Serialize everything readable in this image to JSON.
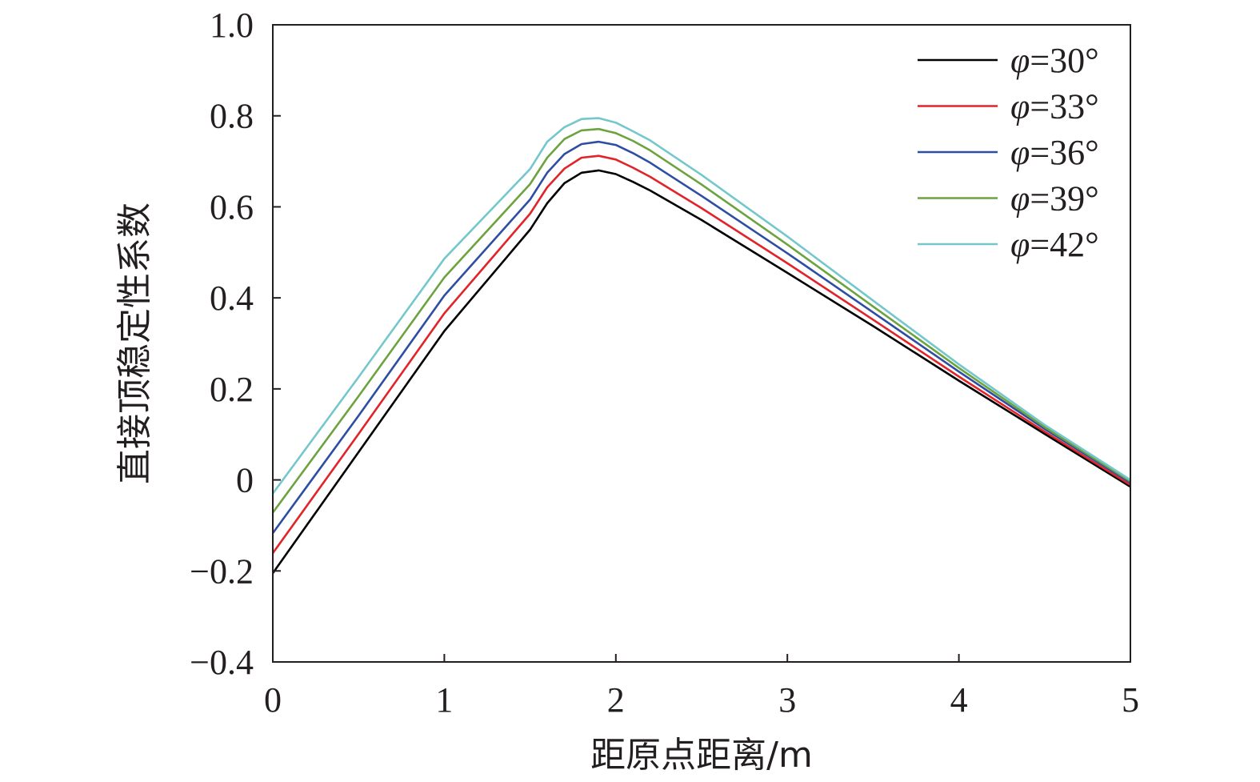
{
  "chart_data": {
    "type": "line",
    "xlabel": "距原点距离/m",
    "ylabel": "直接顶稳定性系数",
    "xlim": [
      0,
      5
    ],
    "ylim": [
      -0.4,
      1.0
    ],
    "x_ticks": [
      "0",
      "1",
      "2",
      "3",
      "4",
      "5"
    ],
    "y_ticks": [
      "−0.4",
      "−0.2",
      "0",
      "0.2",
      "0.4",
      "0.6",
      "0.8",
      "1.0"
    ],
    "grid": false,
    "legend_position": "top-right",
    "x": [
      0,
      0.5,
      1.0,
      1.5,
      1.6,
      1.7,
      1.8,
      1.9,
      2.0,
      2.1,
      2.2,
      2.5,
      3.0,
      3.5,
      4.0,
      4.5,
      5.0
    ],
    "series": [
      {
        "symbol": "φ",
        "label_rest": "=30°",
        "color": "#000000",
        "values": [
          -0.205,
          0.061,
          0.327,
          0.55,
          0.608,
          0.652,
          0.675,
          0.68,
          0.672,
          0.655,
          0.636,
          0.571,
          0.455,
          0.338,
          0.218,
          0.101,
          -0.015
        ]
      },
      {
        "symbol": "φ",
        "label_rest": "=33°",
        "color": "#e1242a",
        "values": [
          -0.161,
          0.101,
          0.366,
          0.585,
          0.643,
          0.684,
          0.708,
          0.712,
          0.704,
          0.686,
          0.666,
          0.597,
          0.476,
          0.352,
          0.227,
          0.106,
          -0.011
        ]
      },
      {
        "symbol": "φ",
        "label_rest": "=36°",
        "color": "#2e4ea3",
        "values": [
          -0.117,
          0.141,
          0.405,
          0.616,
          0.675,
          0.716,
          0.738,
          0.743,
          0.736,
          0.718,
          0.697,
          0.624,
          0.498,
          0.368,
          0.238,
          0.112,
          -0.006
        ]
      },
      {
        "symbol": "φ",
        "label_rest": "=39°",
        "color": "#6da33f",
        "values": [
          -0.072,
          0.184,
          0.445,
          0.65,
          0.708,
          0.749,
          0.768,
          0.771,
          0.762,
          0.745,
          0.724,
          0.649,
          0.517,
          0.381,
          0.246,
          0.116,
          -0.003
        ]
      },
      {
        "symbol": "φ",
        "label_rest": "=42°",
        "color": "#74c7cb",
        "values": [
          -0.03,
          0.226,
          0.486,
          0.683,
          0.743,
          0.775,
          0.793,
          0.795,
          0.785,
          0.766,
          0.746,
          0.67,
          0.535,
          0.394,
          0.254,
          0.121,
          0.0
        ]
      }
    ]
  }
}
